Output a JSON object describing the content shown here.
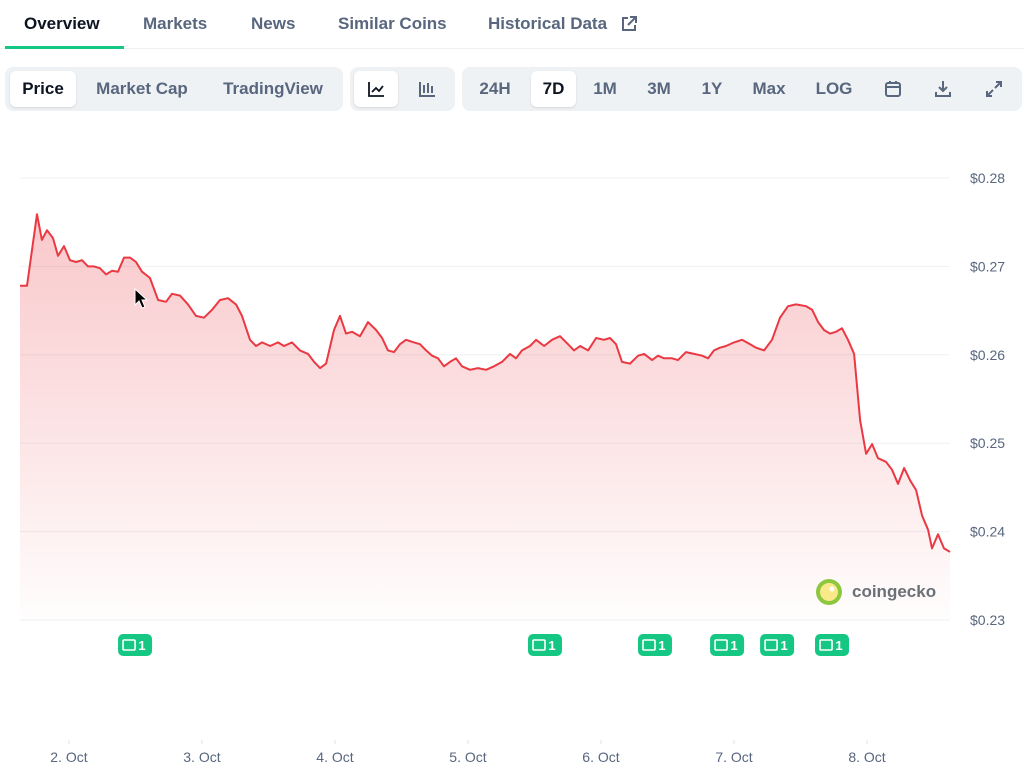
{
  "tabs": [
    "Overview",
    "Markets",
    "News",
    "Similar Coins",
    "Historical Data"
  ],
  "active_tab": "Overview",
  "chart_modes": [
    "Price",
    "Market Cap",
    "TradingView"
  ],
  "active_mode": "Price",
  "ranges": [
    "24H",
    "7D",
    "1M",
    "3M",
    "1Y",
    "Max",
    "LOG"
  ],
  "active_range": "7D",
  "watermark": "coingecko",
  "chart_data": {
    "type": "line",
    "color": "#ea3943",
    "grid": true,
    "xlim": [
      1.632,
      8.624
    ],
    "xticks": [
      {
        "value": 2,
        "label": "2. Oct"
      },
      {
        "value": 3,
        "label": "3. Oct"
      },
      {
        "value": 4,
        "label": "4. Oct"
      },
      {
        "value": 5,
        "label": "5. Oct"
      },
      {
        "value": 6,
        "label": "6. Oct"
      },
      {
        "value": 7,
        "label": "7. Oct"
      },
      {
        "value": 8,
        "label": "8. Oct"
      }
    ],
    "ylim": [
      0.23,
      0.28
    ],
    "yticks": [
      {
        "value": 0.23,
        "label": "$0.23"
      },
      {
        "value": 0.24,
        "label": "$0.24"
      },
      {
        "value": 0.25,
        "label": "$0.25"
      },
      {
        "value": 0.26,
        "label": "$0.26"
      },
      {
        "value": 0.27,
        "label": "$0.27"
      },
      {
        "value": 0.28,
        "label": "$0.28"
      }
    ],
    "x": [
      1.632,
      1.685,
      1.76,
      1.797,
      1.835,
      1.88,
      1.918,
      1.963,
      2.008,
      2.053,
      2.098,
      2.143,
      2.188,
      2.233,
      2.279,
      2.324,
      2.369,
      2.414,
      2.459,
      2.504,
      2.549,
      2.609,
      2.67,
      2.73,
      2.775,
      2.835,
      2.895,
      2.955,
      3.015,
      3.076,
      3.136,
      3.196,
      3.256,
      3.301,
      3.361,
      3.406,
      3.452,
      3.512,
      3.572,
      3.617,
      3.677,
      3.737,
      3.797,
      3.843,
      3.888,
      3.933,
      3.993,
      4.038,
      4.083,
      4.128,
      4.188,
      4.248,
      4.309,
      4.354,
      4.399,
      4.444,
      4.489,
      4.534,
      4.594,
      4.639,
      4.685,
      4.73,
      4.775,
      4.82,
      4.865,
      4.91,
      4.955,
      5.015,
      5.075,
      5.136,
      5.196,
      5.256,
      5.316,
      5.361,
      5.406,
      5.466,
      5.512,
      5.572,
      5.632,
      5.692,
      5.752,
      5.797,
      5.843,
      5.903,
      5.963,
      6.023,
      6.068,
      6.113,
      6.158,
      6.218,
      6.279,
      6.324,
      6.384,
      6.429,
      6.474,
      6.534,
      6.579,
      6.639,
      6.7,
      6.76,
      6.805,
      6.85,
      6.895,
      6.94,
      7.0,
      7.06,
      7.121,
      7.166,
      7.226,
      7.286,
      7.346,
      7.406,
      7.466,
      7.542,
      7.587,
      7.632,
      7.677,
      7.722,
      7.767,
      7.812,
      7.857,
      7.903,
      7.948,
      7.993,
      8.038,
      8.083,
      8.143,
      8.188,
      8.233,
      8.279,
      8.324,
      8.369,
      8.414,
      8.459,
      8.489,
      8.534,
      8.579,
      8.624
    ],
    "values": [
      0.2678,
      0.2678,
      0.2759,
      0.273,
      0.2741,
      0.2732,
      0.2712,
      0.2723,
      0.2707,
      0.2705,
      0.2707,
      0.27,
      0.27,
      0.2698,
      0.2691,
      0.2695,
      0.2694,
      0.271,
      0.271,
      0.2705,
      0.2694,
      0.2687,
      0.2662,
      0.266,
      0.2669,
      0.2667,
      0.2657,
      0.2644,
      0.2642,
      0.2651,
      0.2662,
      0.2664,
      0.2657,
      0.2644,
      0.2617,
      0.261,
      0.2614,
      0.261,
      0.2614,
      0.261,
      0.2614,
      0.2605,
      0.2601,
      0.2592,
      0.2585,
      0.259,
      0.2628,
      0.2644,
      0.2624,
      0.2626,
      0.2621,
      0.2637,
      0.2628,
      0.2619,
      0.2605,
      0.2603,
      0.2612,
      0.2617,
      0.2614,
      0.2612,
      0.2605,
      0.2599,
      0.2596,
      0.2587,
      0.2592,
      0.2596,
      0.2587,
      0.2583,
      0.2585,
      0.2583,
      0.2587,
      0.2592,
      0.2601,
      0.2596,
      0.2605,
      0.261,
      0.2617,
      0.261,
      0.2617,
      0.2621,
      0.2612,
      0.2605,
      0.261,
      0.2605,
      0.2619,
      0.2617,
      0.2619,
      0.2612,
      0.2592,
      0.259,
      0.2599,
      0.2601,
      0.2594,
      0.2599,
      0.2596,
      0.2596,
      0.2594,
      0.2603,
      0.2601,
      0.2599,
      0.2596,
      0.2605,
      0.2608,
      0.261,
      0.2614,
      0.2617,
      0.2612,
      0.2608,
      0.2605,
      0.2617,
      0.2642,
      0.2655,
      0.2657,
      0.2655,
      0.2651,
      0.2637,
      0.2628,
      0.2624,
      0.2626,
      0.263,
      0.2617,
      0.2601,
      0.2526,
      0.2488,
      0.2499,
      0.2483,
      0.2479,
      0.247,
      0.2454,
      0.2472,
      0.2458,
      0.2447,
      0.2418,
      0.2402,
      0.2381,
      0.2397,
      0.2381,
      0.2377
    ],
    "news_markers": [
      {
        "x": 2.497,
        "count": 1
      },
      {
        "x": 5.579,
        "count": 1
      },
      {
        "x": 6.406,
        "count": 1
      },
      {
        "x": 6.948,
        "count": 1
      },
      {
        "x": 7.324,
        "count": 1
      },
      {
        "x": 7.737,
        "count": 1
      }
    ]
  }
}
